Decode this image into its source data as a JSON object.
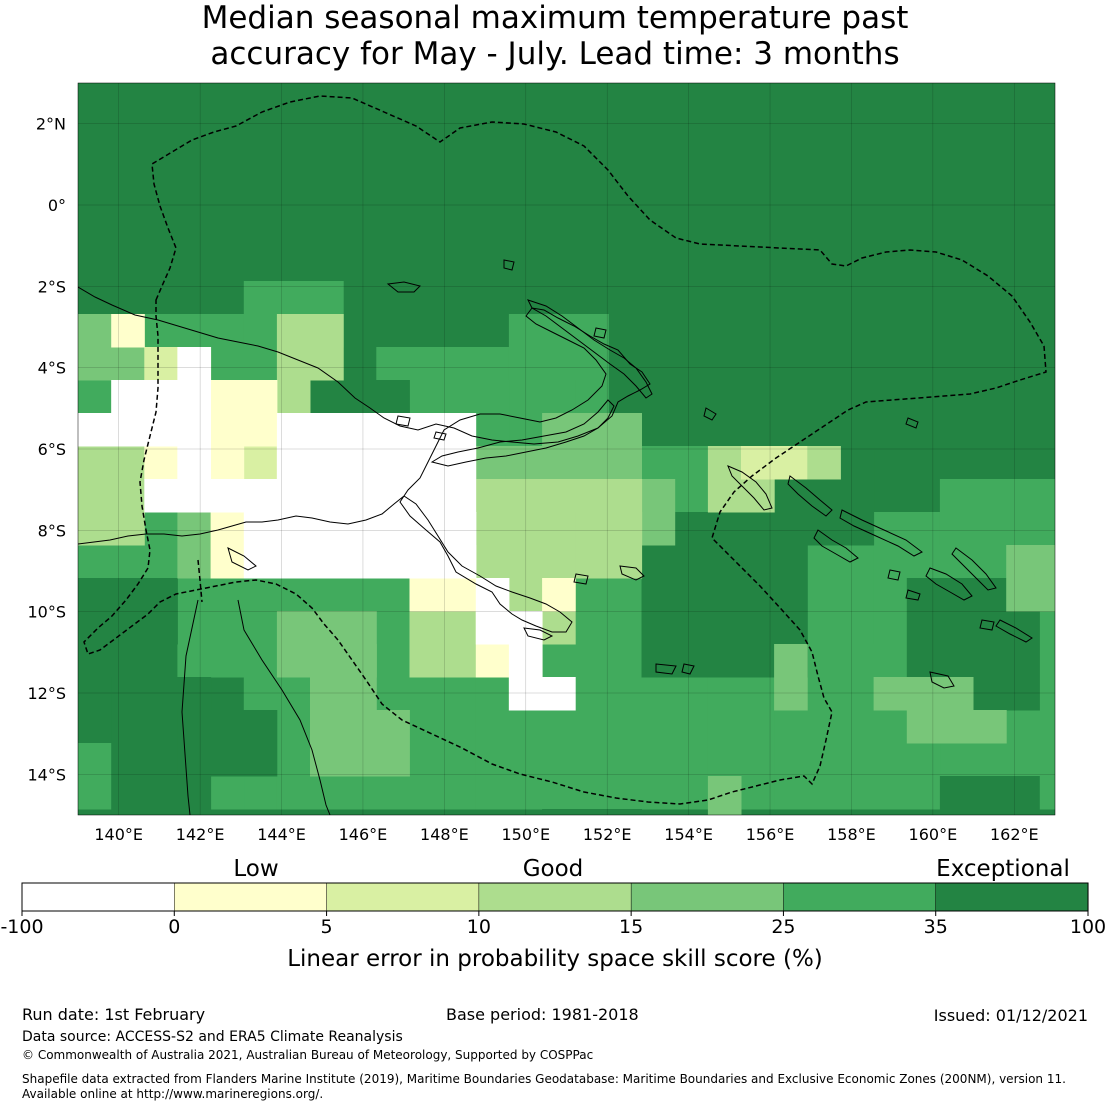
{
  "title": {
    "line1": "Median seasonal maximum temperature past",
    "line2": "accuracy for May - July. Lead time: 3 months"
  },
  "map": {
    "lon_range": [
      139,
      163
    ],
    "lat_range": [
      -15,
      3
    ],
    "lon_ticks": [
      "140°E",
      "142°E",
      "144°E",
      "146°E",
      "148°E",
      "150°E",
      "152°E",
      "154°E",
      "156°E",
      "158°E",
      "160°E",
      "162°E"
    ],
    "lat_ticks": [
      "2°N",
      "0°",
      "2°S",
      "4°S",
      "6°S",
      "8°S",
      "10°S",
      "12°S",
      "14°S"
    ],
    "colors": {
      "below_0": "#ffffff",
      "0_5": "#ffffcc",
      "5_10": "#d9f0a3",
      "10_15": "#addd8e",
      "15_25": "#78c679",
      "25_35": "#41ab5d",
      "35_100": "#238443"
    }
  },
  "colorbar": {
    "boundaries": [
      "-100",
      "0",
      "5",
      "10",
      "15",
      "25",
      "35",
      "100"
    ],
    "colors": [
      "#ffffff",
      "#ffffcc",
      "#d9f0a3",
      "#addd8e",
      "#78c679",
      "#41ab5d",
      "#238443"
    ],
    "categories": [
      "Low",
      "Good",
      "Exceptional"
    ],
    "title": "Linear error in probability space skill score (%)"
  },
  "footer": {
    "run_date": "Run date: 1st February",
    "base_period": "Base period: 1981-2018",
    "issued": "Issued: 01/12/2021",
    "data_source": "Data source: ACCESS-S2 and ERA5 Climate Reanalysis",
    "copyright": "© Commonwealth of Australia 2021, Australian Bureau of Meteorology, Supported by COSPPac",
    "shapefile_line1": "Shapefile data extracted from Flanders Marine Institute (2019), Maritime Boundaries Geodatabase: Maritime Boundaries and Exclusive Economic Zones (200NM), version 11.",
    "shapefile_line2": "Available online at http://www.marineregions.org/."
  }
}
